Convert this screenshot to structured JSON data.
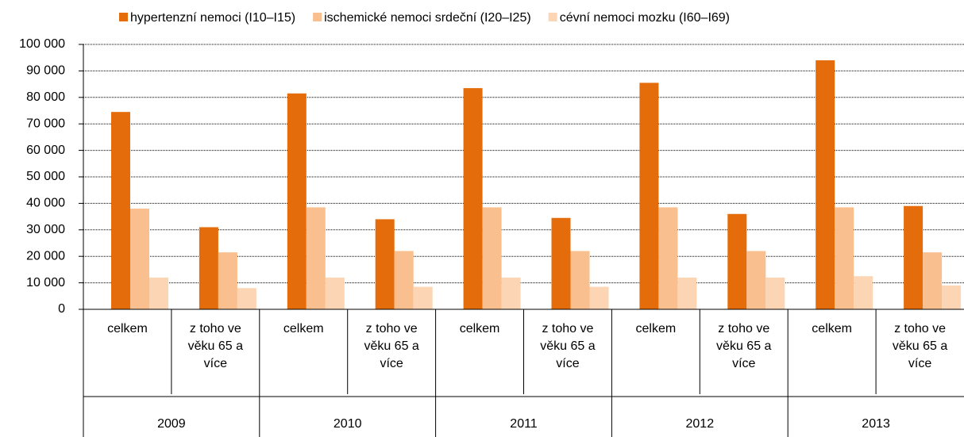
{
  "chart_data": {
    "type": "bar",
    "categories": [
      "celkem",
      "z toho ve věku 65 a více",
      "celkem",
      "z toho ve věku 65 a více",
      "celkem",
      "z toho ve věku 65 a více",
      "celkem",
      "z toho ve věku 65 a více",
      "celkem",
      "z toho ve věku 65 a více"
    ],
    "groups": [
      "2009",
      "2010",
      "2011",
      "2012",
      "2013"
    ],
    "series": [
      {
        "name": "hypertenzní nemoci (I10–I15)",
        "color": "#e46c0a",
        "values": [
          74500,
          31000,
          81500,
          34000,
          83500,
          34500,
          85500,
          36000,
          94000,
          39000
        ]
      },
      {
        "name": "ischemické nemoci srdeční (I20–I25)",
        "color": "#fabf8f",
        "values": [
          38000,
          21500,
          38500,
          22000,
          38500,
          22000,
          38500,
          22000,
          38500,
          21500
        ]
      },
      {
        "name": "cévní nemoci mozku (I60–I69)",
        "color": "#fcd5b5",
        "values": [
          12000,
          8000,
          12000,
          8500,
          12000,
          8500,
          12000,
          12000,
          12500,
          9000
        ]
      }
    ],
    "ylim": [
      0,
      100000
    ],
    "yticks": [
      0,
      {
        "value": 10000,
        "label": "10 000"
      },
      {
        "value": 20000,
        "label": "20 000"
      },
      {
        "value": 30000,
        "label": "30 000"
      },
      {
        "value": 40000,
        "label": "40 000"
      },
      {
        "value": 50000,
        "label": "50 000"
      },
      {
        "value": 60000,
        "label": "60 000"
      },
      {
        "value": 70000,
        "label": "70 000"
      },
      {
        "value": 80000,
        "label": "80 000"
      },
      {
        "value": 90000,
        "label": "90 000"
      },
      {
        "value": 100000,
        "label": "100 000"
      }
    ],
    "grid": true,
    "legend": "top"
  }
}
